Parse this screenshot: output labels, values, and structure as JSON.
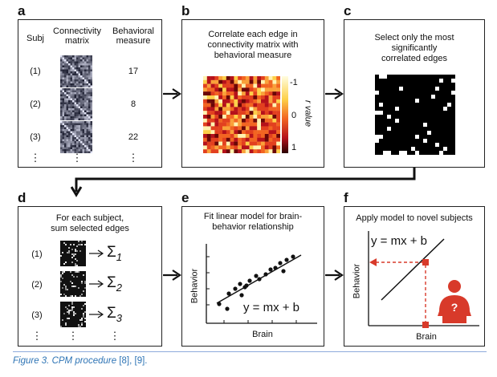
{
  "panels": {
    "a": {
      "letter": "a",
      "col_subj": "Subj",
      "col_matrix_1": "Connectivity",
      "col_matrix_2": "matrix",
      "col_measure_1": "Behavioral",
      "col_measure_2": "measure",
      "rows": [
        {
          "subj": "(1)",
          "measure": "17"
        },
        {
          "subj": "(2)",
          "measure": "8"
        },
        {
          "subj": "(3)",
          "measure": "22"
        }
      ],
      "ellipsis": "⋮"
    },
    "b": {
      "letter": "b",
      "line1": "Correlate each edge in",
      "line2": "connectivity matrix with",
      "line3": "behavioral measure",
      "colorbar_ticks": [
        "-1",
        "0",
        "1"
      ],
      "colorbar_label": "r value"
    },
    "c": {
      "letter": "c",
      "line1": "Select only the most",
      "line2": "significantly",
      "line3": "correlated edges"
    },
    "d": {
      "letter": "d",
      "line1": "For each subject,",
      "line2": "sum selected edges",
      "rows": [
        {
          "subj": "(1)",
          "sigma": "Σ",
          "sub": "1"
        },
        {
          "subj": "(2)",
          "sigma": "Σ",
          "sub": "2"
        },
        {
          "subj": "(3)",
          "sigma": "Σ",
          "sub": "3"
        }
      ],
      "ellipsis": "⋮"
    },
    "e": {
      "letter": "e",
      "line1": "Fit linear model for brain-",
      "line2": "behavior relationship",
      "equation": "y = mx + b",
      "xlabel": "Brain",
      "ylabel": "Behavior"
    },
    "f": {
      "letter": "f",
      "line1": "Apply model to novel subjects",
      "equation": "y = mx + b",
      "xlabel": "Brain",
      "ylabel": "Behavior",
      "person_mark": "?"
    }
  },
  "colors": {
    "border": "#222222",
    "red": "#d83a2a",
    "caption": "#2e74b5"
  },
  "caption": {
    "text": "Figure 3. CPM procedure",
    "refs": " [8], [9]."
  }
}
